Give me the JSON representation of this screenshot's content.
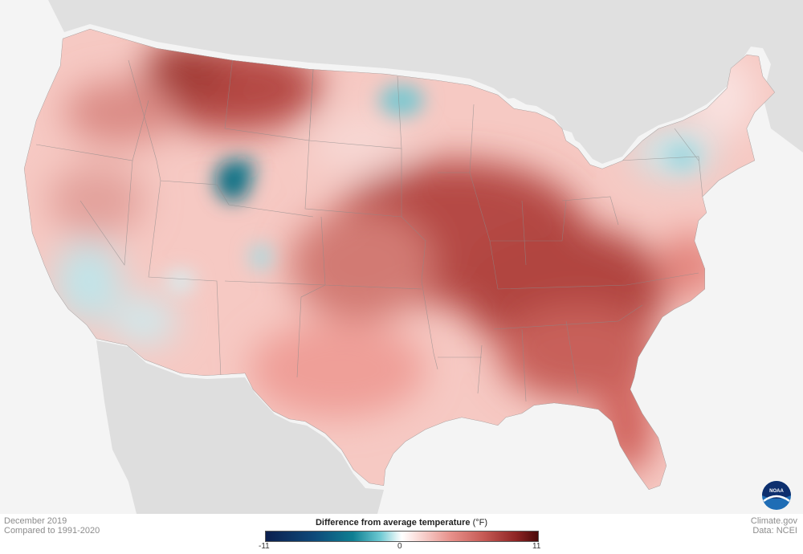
{
  "map": {
    "title": "Difference from average temperature",
    "unit": "(°F)",
    "date": "December 2019",
    "comparison": "Compared to 1991-2020",
    "credit": "Climate.gov",
    "data_source": "Data: NCEI",
    "legend": {
      "min": "-11",
      "mid": "0",
      "max": "11",
      "colors": {
        "cold_extreme": "#0c1f4e",
        "cold": "#0f7f92",
        "neutral": "#ffffff",
        "warm": "#e7908a",
        "warm_extreme": "#4a0a0a"
      }
    },
    "logo": {
      "text": "NOAA",
      "icon": "noaa-logo-icon"
    }
  }
}
